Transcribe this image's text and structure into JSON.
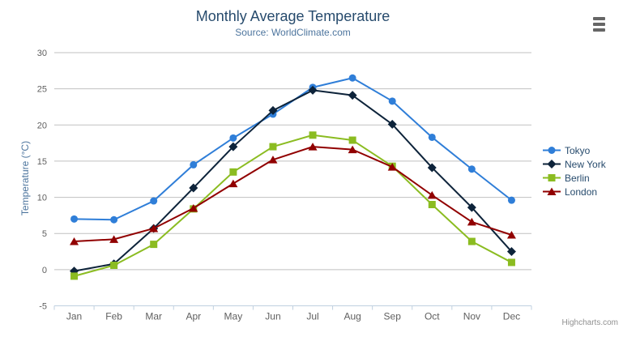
{
  "credits": "Highcharts.com",
  "export_menu": {
    "icon": "hamburger"
  },
  "colors": {
    "title": "#274b6d",
    "subtitle": "#4d759e",
    "axis_label": "#606060",
    "y_axis_title": "#4d759e",
    "grid_line": "#C0C0C0",
    "axis_line": "#C0D0E0",
    "legend_text": "#274b6d",
    "credits_text": "#909090",
    "export_icon": "#666666"
  },
  "chart_data": {
    "type": "line",
    "title": "Monthly Average Temperature",
    "subtitle": "Source: WorldClimate.com",
    "xlabel": "",
    "ylabel": "Temperature (°C)",
    "categories": [
      "Jan",
      "Feb",
      "Mar",
      "Apr",
      "May",
      "Jun",
      "Jul",
      "Aug",
      "Sep",
      "Oct",
      "Nov",
      "Dec"
    ],
    "y_ticks": [
      -5,
      0,
      5,
      10,
      15,
      20,
      25,
      30
    ],
    "ylim": [
      -5,
      30
    ],
    "grid": true,
    "legend_position": "right",
    "series": [
      {
        "name": "Tokyo",
        "color": "#2f7ed8",
        "marker": "circle",
        "values": [
          7.0,
          6.9,
          9.5,
          14.5,
          18.2,
          21.5,
          25.2,
          26.5,
          23.3,
          18.3,
          13.9,
          9.6
        ]
      },
      {
        "name": "New York",
        "color": "#0d233a",
        "marker": "diamond",
        "values": [
          -0.2,
          0.8,
          5.7,
          11.3,
          17.0,
          22.0,
          24.8,
          24.1,
          20.1,
          14.1,
          8.6,
          2.5
        ]
      },
      {
        "name": "Berlin",
        "color": "#8bbc21",
        "marker": "square",
        "values": [
          -0.9,
          0.6,
          3.5,
          8.4,
          13.5,
          17.0,
          18.6,
          17.9,
          14.3,
          9.0,
          3.9,
          1.0
        ]
      },
      {
        "name": "London",
        "color": "#910000",
        "marker": "triangle",
        "values": [
          3.9,
          4.2,
          5.7,
          8.5,
          11.9,
          15.2,
          17.0,
          16.6,
          14.2,
          10.3,
          6.6,
          4.8
        ]
      }
    ]
  }
}
